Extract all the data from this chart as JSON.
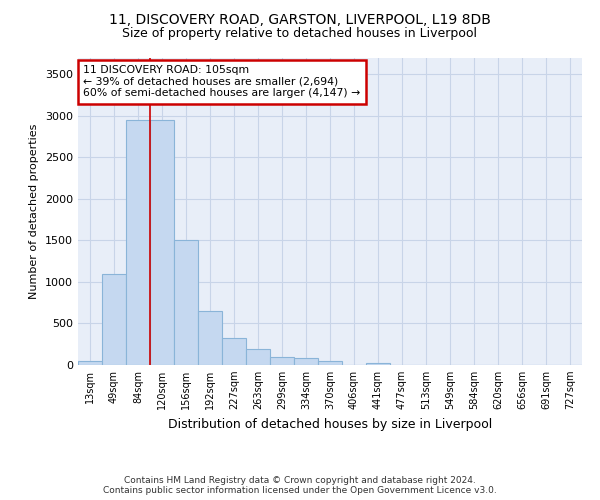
{
  "title_line1": "11, DISCOVERY ROAD, GARSTON, LIVERPOOL, L19 8DB",
  "title_line2": "Size of property relative to detached houses in Liverpool",
  "xlabel": "Distribution of detached houses by size in Liverpool",
  "ylabel": "Number of detached properties",
  "categories": [
    "13sqm",
    "49sqm",
    "84sqm",
    "120sqm",
    "156sqm",
    "192sqm",
    "227sqm",
    "263sqm",
    "299sqm",
    "334sqm",
    "370sqm",
    "406sqm",
    "441sqm",
    "477sqm",
    "513sqm",
    "549sqm",
    "584sqm",
    "620sqm",
    "656sqm",
    "691sqm",
    "727sqm"
  ],
  "values": [
    50,
    1100,
    2950,
    2950,
    1500,
    650,
    330,
    195,
    100,
    90,
    50,
    0,
    25,
    0,
    0,
    0,
    0,
    0,
    0,
    0,
    0
  ],
  "bar_color": "#c5d8f0",
  "bar_edge_color": "#8ab4d8",
  "vline_x": 2.5,
  "vline_color": "#cc0000",
  "annotation_text_line1": "11 DISCOVERY ROAD: 105sqm",
  "annotation_text_line2": "← 39% of detached houses are smaller (2,694)",
  "annotation_text_line3": "60% of semi-detached houses are larger (4,147) →",
  "annotation_box_color": "#ffffff",
  "annotation_border_color": "#cc0000",
  "grid_color": "#c8d4e8",
  "background_color": "#e8eef8",
  "ylim": [
    0,
    3700
  ],
  "yticks": [
    0,
    500,
    1000,
    1500,
    2000,
    2500,
    3000,
    3500
  ],
  "footnote": "Contains HM Land Registry data © Crown copyright and database right 2024.\nContains public sector information licensed under the Open Government Licence v3.0."
}
